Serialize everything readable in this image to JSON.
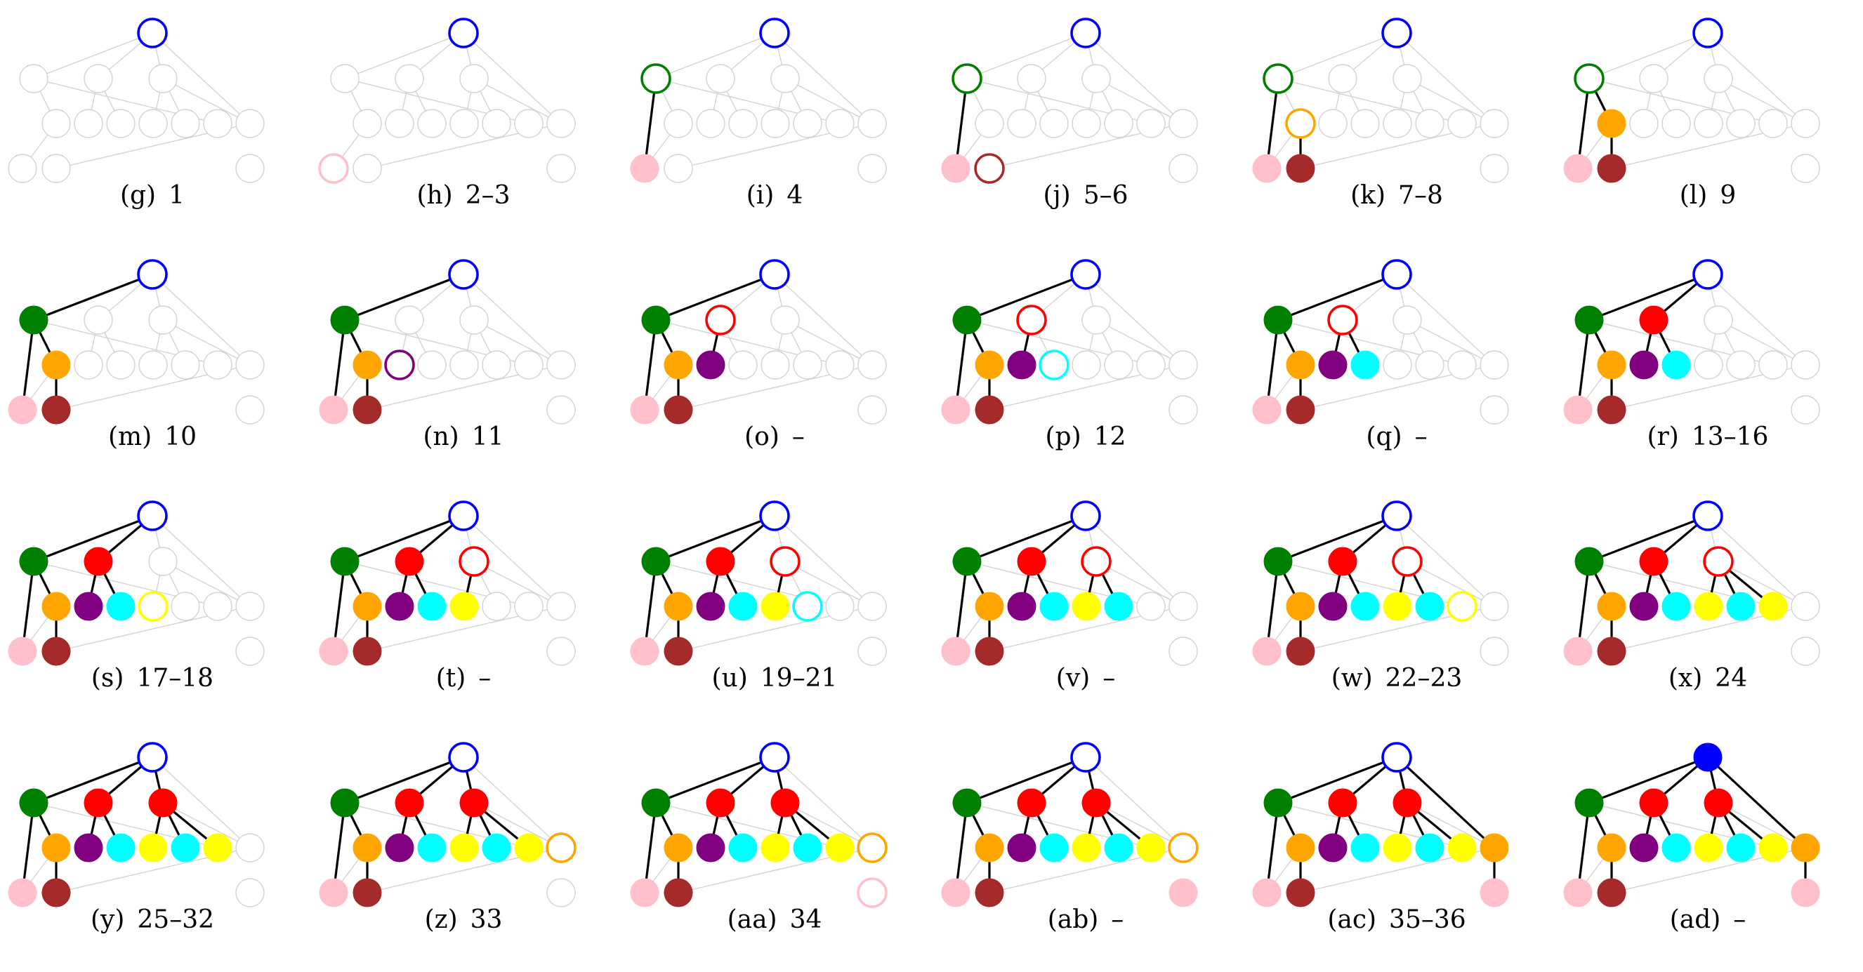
{
  "palette": {
    "root": "#0000ff",
    "green": "#008000",
    "orange": "#ffa500",
    "pink": "#ffc0cb",
    "brown": "#a52a2a",
    "purple": "#800080",
    "red": "#ff0000",
    "cyan": "#00ffff",
    "yellow": "#ffff00",
    "inactive": "#d3d3d3",
    "active_edge": "#000000"
  },
  "tree": {
    "nodes": [
      "A",
      "B",
      "C",
      "D",
      "E",
      "F",
      "G",
      "H",
      "I",
      "J",
      "K",
      "L",
      "M",
      "N",
      "O"
    ],
    "edges": [
      [
        "A",
        "B"
      ],
      [
        "A",
        "C"
      ],
      [
        "A",
        "D"
      ],
      [
        "A",
        "J"
      ],
      [
        "B",
        "K"
      ],
      [
        "B",
        "E"
      ],
      [
        "C",
        "F"
      ],
      [
        "C",
        "G"
      ],
      [
        "D",
        "H"
      ],
      [
        "D",
        "I"
      ],
      [
        "D",
        "J"
      ],
      [
        "J",
        "M"
      ],
      [
        "E",
        "L"
      ]
    ]
  },
  "panels": [
    {
      "label": "(g)",
      "steps": "1",
      "nodes": {
        "A": "root:o"
      },
      "edges": []
    },
    {
      "label": "(h)",
      "steps": "2–3",
      "nodes": {
        "A": "root:o",
        "L": "pink:o"
      },
      "edges": []
    },
    {
      "label": "(i)",
      "steps": "4",
      "nodes": {
        "A": "root:o",
        "B": "green:o",
        "L": "pink:f"
      },
      "edges": [
        [
          "B",
          "L"
        ]
      ]
    },
    {
      "label": "(j)",
      "steps": "5–6",
      "nodes": {
        "A": "root:o",
        "B": "green:o",
        "L": "pink:f",
        "M": "brown:o"
      },
      "edges": [
        [
          "B",
          "L"
        ]
      ]
    },
    {
      "label": "(k)",
      "steps": "7–8",
      "nodes": {
        "A": "root:o",
        "B": "green:o",
        "E": "orange:o",
        "L": "pink:f",
        "M": "brown:f"
      },
      "edges": [
        [
          "B",
          "L"
        ],
        [
          "E",
          "M"
        ]
      ]
    },
    {
      "label": "(l)",
      "steps": "9",
      "nodes": {
        "A": "root:o",
        "B": "green:o",
        "E": "orange:f",
        "L": "pink:f",
        "M": "brown:f"
      },
      "edges": [
        [
          "B",
          "L"
        ],
        [
          "B",
          "E"
        ],
        [
          "E",
          "M"
        ]
      ]
    },
    {
      "label": "(m)",
      "steps": "10",
      "nodes": {
        "A": "root:o",
        "B": "green:f",
        "E": "orange:f",
        "L": "pink:f",
        "M": "brown:f"
      },
      "edges": [
        [
          "A",
          "B"
        ],
        [
          "B",
          "L"
        ],
        [
          "B",
          "E"
        ],
        [
          "E",
          "M"
        ]
      ]
    },
    {
      "label": "(n)",
      "steps": "11",
      "nodes": {
        "A": "root:o",
        "B": "green:f",
        "E": "orange:f",
        "F": "purple:o",
        "L": "pink:f",
        "M": "brown:f"
      },
      "edges": [
        [
          "A",
          "B"
        ],
        [
          "B",
          "L"
        ],
        [
          "B",
          "E"
        ],
        [
          "E",
          "M"
        ]
      ]
    },
    {
      "label": "(o)",
      "steps": "–",
      "nodes": {
        "A": "root:o",
        "B": "green:f",
        "C": "red:o",
        "E": "orange:f",
        "F": "purple:f",
        "L": "pink:f",
        "M": "brown:f"
      },
      "edges": [
        [
          "A",
          "B"
        ],
        [
          "B",
          "L"
        ],
        [
          "B",
          "E"
        ],
        [
          "E",
          "M"
        ],
        [
          "C",
          "F"
        ]
      ]
    },
    {
      "label": "(p)",
      "steps": "12",
      "nodes": {
        "A": "root:o",
        "B": "green:f",
        "C": "red:o",
        "E": "orange:f",
        "F": "purple:f",
        "G": "cyan:o",
        "L": "pink:f",
        "M": "brown:f"
      },
      "edges": [
        [
          "A",
          "B"
        ],
        [
          "B",
          "L"
        ],
        [
          "B",
          "E"
        ],
        [
          "E",
          "M"
        ],
        [
          "C",
          "F"
        ]
      ]
    },
    {
      "label": "(q)",
      "steps": "–",
      "nodes": {
        "A": "root:o",
        "B": "green:f",
        "C": "red:o",
        "E": "orange:f",
        "F": "purple:f",
        "G": "cyan:f",
        "L": "pink:f",
        "M": "brown:f"
      },
      "edges": [
        [
          "A",
          "B"
        ],
        [
          "B",
          "L"
        ],
        [
          "B",
          "E"
        ],
        [
          "E",
          "M"
        ],
        [
          "C",
          "F"
        ],
        [
          "C",
          "G"
        ]
      ]
    },
    {
      "label": "(r)",
      "steps": "13–16",
      "nodes": {
        "A": "root:o",
        "B": "green:f",
        "C": "red:f",
        "E": "orange:f",
        "F": "purple:f",
        "G": "cyan:f",
        "L": "pink:f",
        "M": "brown:f"
      },
      "edges": [
        [
          "A",
          "B"
        ],
        [
          "A",
          "C"
        ],
        [
          "B",
          "L"
        ],
        [
          "B",
          "E"
        ],
        [
          "E",
          "M"
        ],
        [
          "C",
          "F"
        ],
        [
          "C",
          "G"
        ]
      ]
    },
    {
      "label": "(s)",
      "steps": "17–18",
      "nodes": {
        "A": "root:o",
        "B": "green:f",
        "C": "red:f",
        "E": "orange:f",
        "F": "purple:f",
        "G": "cyan:f",
        "H": "yellow:o",
        "L": "pink:f",
        "M": "brown:f"
      },
      "edges": [
        [
          "A",
          "B"
        ],
        [
          "A",
          "C"
        ],
        [
          "B",
          "L"
        ],
        [
          "B",
          "E"
        ],
        [
          "E",
          "M"
        ],
        [
          "C",
          "F"
        ],
        [
          "C",
          "G"
        ]
      ]
    },
    {
      "label": "(t)",
      "steps": "–",
      "nodes": {
        "A": "root:o",
        "B": "green:f",
        "C": "red:f",
        "D": "red:o",
        "E": "orange:f",
        "F": "purple:f",
        "G": "cyan:f",
        "H": "yellow:f",
        "L": "pink:f",
        "M": "brown:f"
      },
      "edges": [
        [
          "A",
          "B"
        ],
        [
          "A",
          "C"
        ],
        [
          "B",
          "L"
        ],
        [
          "B",
          "E"
        ],
        [
          "E",
          "M"
        ],
        [
          "C",
          "F"
        ],
        [
          "C",
          "G"
        ],
        [
          "D",
          "H"
        ]
      ]
    },
    {
      "label": "(u)",
      "steps": "19–21",
      "nodes": {
        "A": "root:o",
        "B": "green:f",
        "C": "red:f",
        "D": "red:o",
        "E": "orange:f",
        "F": "purple:f",
        "G": "cyan:f",
        "H": "yellow:f",
        "I": "cyan:o",
        "L": "pink:f",
        "M": "brown:f"
      },
      "edges": [
        [
          "A",
          "B"
        ],
        [
          "A",
          "C"
        ],
        [
          "B",
          "L"
        ],
        [
          "B",
          "E"
        ],
        [
          "E",
          "M"
        ],
        [
          "C",
          "F"
        ],
        [
          "C",
          "G"
        ],
        [
          "D",
          "H"
        ]
      ]
    },
    {
      "label": "(v)",
      "steps": "–",
      "nodes": {
        "A": "root:o",
        "B": "green:f",
        "C": "red:f",
        "D": "red:o",
        "E": "orange:f",
        "F": "purple:f",
        "G": "cyan:f",
        "H": "yellow:f",
        "I": "cyan:f",
        "L": "pink:f",
        "M": "brown:f"
      },
      "edges": [
        [
          "A",
          "B"
        ],
        [
          "A",
          "C"
        ],
        [
          "B",
          "L"
        ],
        [
          "B",
          "E"
        ],
        [
          "E",
          "M"
        ],
        [
          "C",
          "F"
        ],
        [
          "C",
          "G"
        ],
        [
          "D",
          "H"
        ],
        [
          "D",
          "I"
        ]
      ]
    },
    {
      "label": "(w)",
      "steps": "22–23",
      "nodes": {
        "A": "root:o",
        "B": "green:f",
        "C": "red:f",
        "D": "red:o",
        "E": "orange:f",
        "F": "purple:f",
        "G": "cyan:f",
        "H": "yellow:f",
        "I": "cyan:f",
        "K": "yellow:o",
        "L": "pink:f",
        "M": "brown:f"
      },
      "edges": [
        [
          "A",
          "B"
        ],
        [
          "A",
          "C"
        ],
        [
          "B",
          "L"
        ],
        [
          "B",
          "E"
        ],
        [
          "E",
          "M"
        ],
        [
          "C",
          "F"
        ],
        [
          "C",
          "G"
        ],
        [
          "D",
          "H"
        ],
        [
          "D",
          "I"
        ]
      ]
    },
    {
      "label": "(x)",
      "steps": "24",
      "nodes": {
        "A": "root:o",
        "B": "green:f",
        "C": "red:f",
        "D": "red:o",
        "E": "orange:f",
        "F": "purple:f",
        "G": "cyan:f",
        "H": "yellow:f",
        "I": "cyan:f",
        "K": "yellow:f",
        "L": "pink:f",
        "M": "brown:f"
      },
      "edges": [
        [
          "A",
          "B"
        ],
        [
          "A",
          "C"
        ],
        [
          "B",
          "L"
        ],
        [
          "B",
          "E"
        ],
        [
          "E",
          "M"
        ],
        [
          "C",
          "F"
        ],
        [
          "C",
          "G"
        ],
        [
          "D",
          "H"
        ],
        [
          "D",
          "I"
        ],
        [
          "D",
          "K"
        ]
      ]
    },
    {
      "label": "(y)",
      "steps": "25–32",
      "nodes": {
        "A": "root:o",
        "B": "green:f",
        "C": "red:f",
        "D": "red:f",
        "E": "orange:f",
        "F": "purple:f",
        "G": "cyan:f",
        "H": "yellow:f",
        "I": "cyan:f",
        "K": "yellow:f",
        "L": "pink:f",
        "M": "brown:f"
      },
      "edges": [
        [
          "A",
          "B"
        ],
        [
          "A",
          "C"
        ],
        [
          "A",
          "D"
        ],
        [
          "B",
          "L"
        ],
        [
          "B",
          "E"
        ],
        [
          "E",
          "M"
        ],
        [
          "C",
          "F"
        ],
        [
          "C",
          "G"
        ],
        [
          "D",
          "H"
        ],
        [
          "D",
          "I"
        ],
        [
          "D",
          "K"
        ]
      ]
    },
    {
      "label": "(z)",
      "steps": "33",
      "nodes": {
        "A": "root:o",
        "B": "green:f",
        "C": "red:f",
        "D": "red:f",
        "E": "orange:f",
        "F": "purple:f",
        "G": "cyan:f",
        "H": "yellow:f",
        "I": "cyan:f",
        "K": "yellow:f",
        "J": "orange:o",
        "L": "pink:f",
        "M": "brown:f"
      },
      "edges": [
        [
          "A",
          "B"
        ],
        [
          "A",
          "C"
        ],
        [
          "A",
          "D"
        ],
        [
          "B",
          "L"
        ],
        [
          "B",
          "E"
        ],
        [
          "E",
          "M"
        ],
        [
          "C",
          "F"
        ],
        [
          "C",
          "G"
        ],
        [
          "D",
          "H"
        ],
        [
          "D",
          "I"
        ],
        [
          "D",
          "K"
        ]
      ]
    },
    {
      "label": "(aa)",
      "steps": "34",
      "nodes": {
        "A": "root:o",
        "B": "green:f",
        "C": "red:f",
        "D": "red:f",
        "E": "orange:f",
        "F": "purple:f",
        "G": "cyan:f",
        "H": "yellow:f",
        "I": "cyan:f",
        "K": "yellow:f",
        "J": "orange:o",
        "N": "pink:o",
        "L": "pink:f",
        "M": "brown:f"
      },
      "edges": [
        [
          "A",
          "B"
        ],
        [
          "A",
          "C"
        ],
        [
          "A",
          "D"
        ],
        [
          "B",
          "L"
        ],
        [
          "B",
          "E"
        ],
        [
          "E",
          "M"
        ],
        [
          "C",
          "F"
        ],
        [
          "C",
          "G"
        ],
        [
          "D",
          "H"
        ],
        [
          "D",
          "I"
        ],
        [
          "D",
          "K"
        ]
      ]
    },
    {
      "label": "(ab)",
      "steps": "–",
      "nodes": {
        "A": "root:o",
        "B": "green:f",
        "C": "red:f",
        "D": "red:f",
        "E": "orange:f",
        "F": "purple:f",
        "G": "cyan:f",
        "H": "yellow:f",
        "I": "cyan:f",
        "K": "yellow:f",
        "J": "orange:o",
        "N": "pink:f",
        "L": "pink:f",
        "M": "brown:f"
      },
      "edges": [
        [
          "A",
          "B"
        ],
        [
          "A",
          "C"
        ],
        [
          "A",
          "D"
        ],
        [
          "B",
          "L"
        ],
        [
          "B",
          "E"
        ],
        [
          "E",
          "M"
        ],
        [
          "C",
          "F"
        ],
        [
          "C",
          "G"
        ],
        [
          "D",
          "H"
        ],
        [
          "D",
          "I"
        ],
        [
          "D",
          "K"
        ]
      ]
    },
    {
      "label": "(ac)",
      "steps": "35–36",
      "nodes": {
        "A": "root:o",
        "B": "green:f",
        "C": "red:f",
        "D": "red:f",
        "E": "orange:f",
        "F": "purple:f",
        "G": "cyan:f",
        "H": "yellow:f",
        "I": "cyan:f",
        "K": "yellow:f",
        "J": "orange:f",
        "N": "pink:f",
        "L": "pink:f",
        "M": "brown:f"
      },
      "edges": [
        [
          "A",
          "B"
        ],
        [
          "A",
          "C"
        ],
        [
          "A",
          "D"
        ],
        [
          "A",
          "J"
        ],
        [
          "B",
          "L"
        ],
        [
          "B",
          "E"
        ],
        [
          "E",
          "M"
        ],
        [
          "C",
          "F"
        ],
        [
          "C",
          "G"
        ],
        [
          "D",
          "H"
        ],
        [
          "D",
          "I"
        ],
        [
          "D",
          "K"
        ],
        [
          "J",
          "N"
        ]
      ]
    },
    {
      "label": "(ad)",
      "steps": "–",
      "nodes": {
        "A": "root:f",
        "B": "green:f",
        "C": "red:f",
        "D": "red:f",
        "E": "orange:f",
        "F": "purple:f",
        "G": "cyan:f",
        "H": "yellow:f",
        "I": "cyan:f",
        "K": "yellow:f",
        "J": "orange:f",
        "N": "pink:f",
        "L": "pink:f",
        "M": "brown:f"
      },
      "edges": [
        [
          "A",
          "B"
        ],
        [
          "A",
          "C"
        ],
        [
          "A",
          "D"
        ],
        [
          "A",
          "J"
        ],
        [
          "B",
          "L"
        ],
        [
          "B",
          "E"
        ],
        [
          "E",
          "M"
        ],
        [
          "C",
          "F"
        ],
        [
          "C",
          "G"
        ],
        [
          "D",
          "H"
        ],
        [
          "D",
          "I"
        ],
        [
          "D",
          "K"
        ],
        [
          "J",
          "N"
        ]
      ]
    }
  ]
}
